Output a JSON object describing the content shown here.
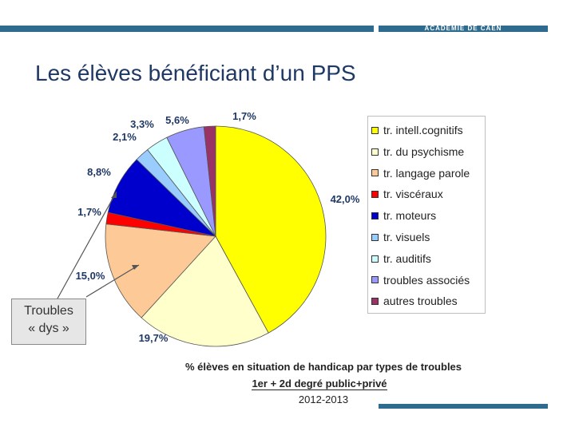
{
  "header": {
    "academy": "ACADÉMIE DE CAEN"
  },
  "slide": {
    "title": "Les élèves bénéficiant d’un PPS"
  },
  "callout": {
    "line1": "Troubles",
    "line2": "« dys »"
  },
  "captions": {
    "line1": "% élèves en situation de handicap par types de troubles",
    "line2": "1er + 2d degré public+privé",
    "line3": "2012-2013"
  },
  "chart_data": {
    "type": "pie",
    "title": "% élèves en situation de handicap par types de troubles",
    "start": "12 o'clock, clockwise",
    "series": [
      {
        "name": "tr. intell.cognitifs",
        "value": 42.0,
        "label": "42,0%",
        "color": "#ffff00"
      },
      {
        "name": "tr.  du psychisme",
        "value": 19.7,
        "label": "19,7%",
        "color": "#ffffcc"
      },
      {
        "name": "tr. langage parole",
        "value": 15.0,
        "label": "15,0%",
        "color": "#fcc997"
      },
      {
        "name": "tr. viscéraux",
        "value": 1.7,
        "label": "1,7%",
        "color": "#ff0000"
      },
      {
        "name": "tr. moteurs",
        "value": 8.8,
        "label": "8,8%",
        "color": "#0000cc"
      },
      {
        "name": "tr. visuels",
        "value": 2.1,
        "label": "2,1%",
        "color": "#99ccff"
      },
      {
        "name": "tr. auditifs",
        "value": 3.3,
        "label": "3,3%",
        "color": "#ccffff"
      },
      {
        "name": "troubles associés",
        "value": 5.6,
        "label": "5,6%",
        "color": "#9999ff"
      },
      {
        "name": "autres troubles",
        "value": 1.7,
        "label": "1,7%",
        "color": "#993366"
      }
    ]
  }
}
